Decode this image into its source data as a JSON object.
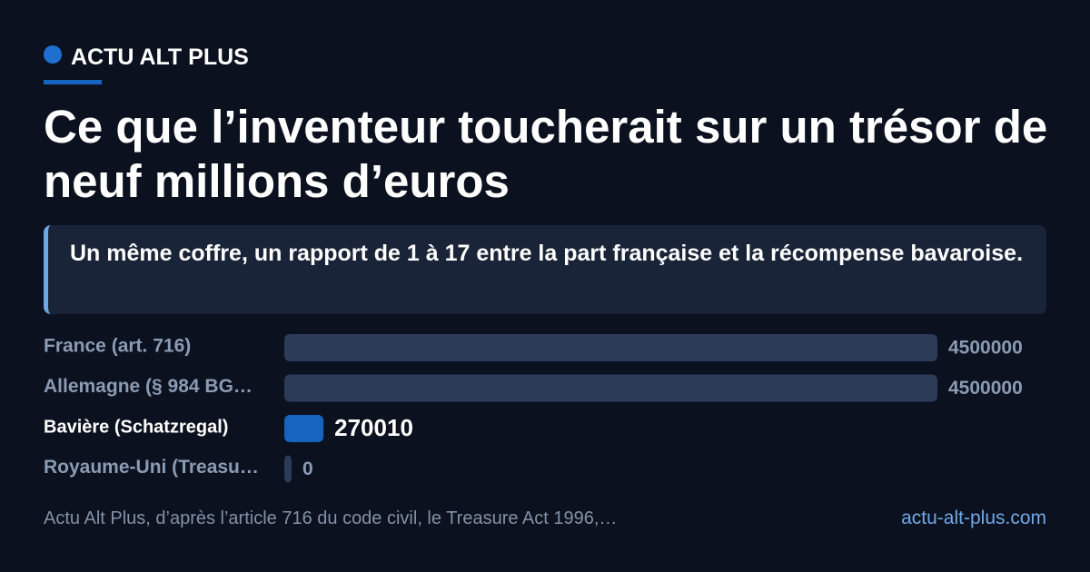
{
  "brand": "ACTU ALT PLUS",
  "chart_data": {
    "type": "bar",
    "orientation": "horizontal",
    "title": "Ce que l’inventeur toucherait sur un trésor de neuf millions d’euros",
    "subtitle": "Un même coffre, un rapport de 1 à 17 entre la part française et la récompense bavaroise.",
    "categories": [
      "France (art. 716)",
      "Allemagne (§ 984 BG…",
      "Bavière (Schatzregal)",
      "Royaume-Uni (Treasu…"
    ],
    "values": [
      4500000,
      4500000,
      270010,
      0
    ],
    "color": "#2c3b57",
    "highlight_index": 2,
    "highlight_color": "#1565c0",
    "xlim": [
      0,
      4500000
    ],
    "source": "Actu Alt Plus, d’après l’article 716 du code civil, le Treasure Act 1996,…"
  },
  "footer_url": "actu-alt-plus.com"
}
